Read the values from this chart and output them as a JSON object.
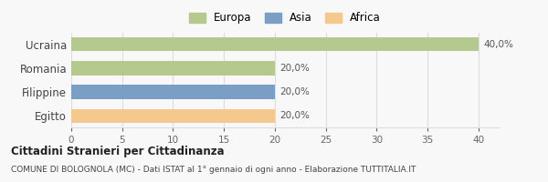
{
  "categories": [
    "Egitto",
    "Filippine",
    "Romania",
    "Ucraina"
  ],
  "values": [
    20.0,
    20.0,
    20.0,
    40.0
  ],
  "colors": [
    "#f5c98e",
    "#7b9ec4",
    "#b5c98e",
    "#b5c98e"
  ],
  "legend": [
    {
      "label": "Europa",
      "color": "#b5c98e"
    },
    {
      "label": "Asia",
      "color": "#7b9ec4"
    },
    {
      "label": "Africa",
      "color": "#f5c98e"
    }
  ],
  "xlim": [
    0,
    42
  ],
  "xticks": [
    0,
    5,
    10,
    15,
    20,
    25,
    30,
    35,
    40
  ],
  "bar_labels": [
    "20,0%",
    "20,0%",
    "20,0%",
    "40,0%"
  ],
  "title_bold": "Cittadini Stranieri per Cittadinanza",
  "subtitle": "COMUNE DI BOLOGNOLA (MC) - Dati ISTAT al 1° gennaio di ogni anno - Elaborazione TUTTITALIA.IT",
  "background_color": "#f8f8f8",
  "grid_color": "#dddddd"
}
